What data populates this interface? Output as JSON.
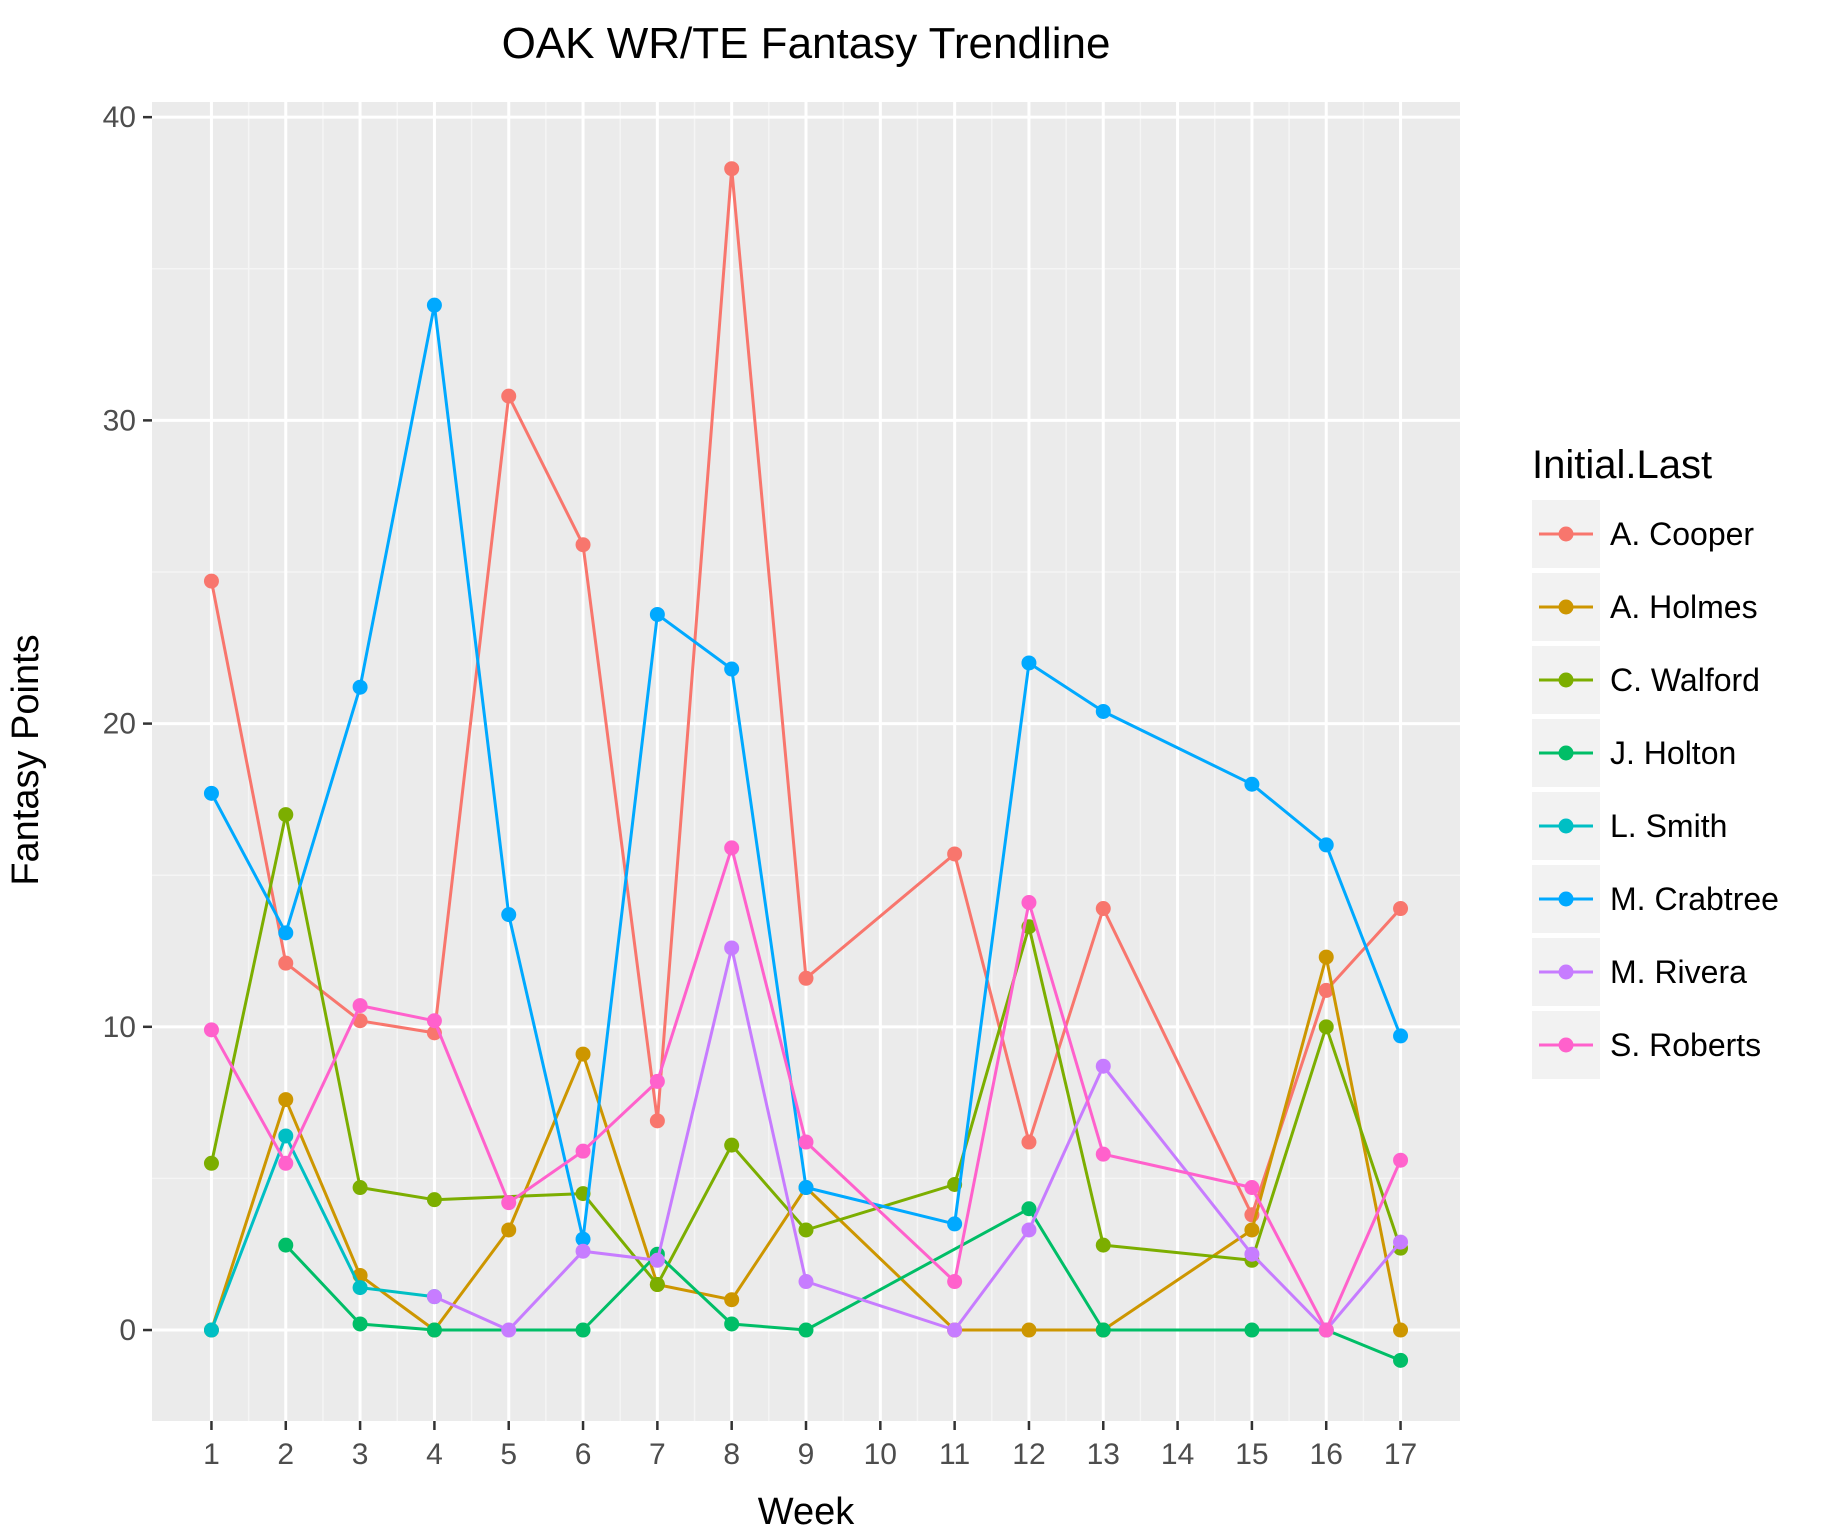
{
  "chart_data": {
    "type": "line",
    "title": "OAK WR/TE Fantasy Trendline",
    "xlabel": "Week",
    "ylabel": "Fantasy Points",
    "x_ticks": [
      "1",
      "2",
      "3",
      "4",
      "5",
      "6",
      "7",
      "8",
      "9",
      "10",
      "11",
      "12",
      "13",
      "14",
      "15",
      "16",
      "17"
    ],
    "y_ticks": [
      0,
      10,
      20,
      30,
      40
    ],
    "ylim": [
      -3,
      40.5
    ],
    "xlim": [
      0.2,
      17.8
    ],
    "grid": true,
    "legend": {
      "title": "Initial.Last",
      "position": "right"
    },
    "series": [
      {
        "name": "A. Cooper",
        "color": "#F8766D",
        "points": [
          [
            1,
            24.7
          ],
          [
            2,
            12.1
          ],
          [
            3,
            10.2
          ],
          [
            4,
            9.8
          ],
          [
            5,
            30.8
          ],
          [
            6,
            25.9
          ],
          [
            7,
            6.9
          ],
          [
            8,
            38.3
          ],
          [
            9,
            11.6
          ],
          [
            11,
            15.7
          ],
          [
            12,
            6.2
          ],
          [
            13,
            13.9
          ],
          [
            15,
            3.8
          ],
          [
            16,
            11.2
          ],
          [
            17,
            13.9
          ]
        ]
      },
      {
        "name": "A. Holmes",
        "color": "#CD9600",
        "points": [
          [
            1,
            0
          ],
          [
            2,
            7.6
          ],
          [
            3,
            1.8
          ],
          [
            4,
            0
          ],
          [
            5,
            3.3
          ],
          [
            6,
            9.1
          ],
          [
            7,
            1.5
          ],
          [
            8,
            1.0
          ],
          [
            9,
            4.7
          ],
          [
            11,
            0
          ],
          [
            12,
            0
          ],
          [
            13,
            0
          ],
          [
            15,
            3.3
          ],
          [
            16,
            12.3
          ],
          [
            17,
            0
          ]
        ]
      },
      {
        "name": "C. Walford",
        "color": "#7CAE00",
        "points": [
          [
            1,
            5.5
          ],
          [
            2,
            17.0
          ],
          [
            3,
            4.7
          ],
          [
            4,
            4.3
          ],
          [
            6,
            4.5
          ],
          [
            7,
            1.5
          ],
          [
            8,
            6.1
          ],
          [
            9,
            3.3
          ],
          [
            11,
            4.8
          ],
          [
            12,
            13.3
          ],
          [
            13,
            2.8
          ],
          [
            15,
            2.3
          ],
          [
            16,
            10.0
          ],
          [
            17,
            2.7
          ]
        ]
      },
      {
        "name": "J. Holton",
        "color": "#00BE67",
        "points": [
          [
            2,
            2.8
          ],
          [
            3,
            0.2
          ],
          [
            4,
            0
          ],
          [
            6,
            0
          ],
          [
            7,
            2.5
          ],
          [
            8,
            0.2
          ],
          [
            9,
            0
          ],
          [
            12,
            4.0
          ],
          [
            13,
            0
          ],
          [
            15,
            0
          ],
          [
            16,
            0
          ],
          [
            17,
            -1.0
          ]
        ]
      },
      {
        "name": "L. Smith",
        "color": "#00BFC4",
        "points": [
          [
            1,
            0
          ],
          [
            2,
            6.4
          ],
          [
            3,
            1.4
          ],
          [
            4,
            1.1
          ]
        ]
      },
      {
        "name": "M. Crabtree",
        "color": "#00A9FF",
        "points": [
          [
            1,
            17.7
          ],
          [
            2,
            13.1
          ],
          [
            3,
            21.2
          ],
          [
            4,
            33.8
          ],
          [
            5,
            13.7
          ],
          [
            6,
            3.0
          ],
          [
            7,
            23.6
          ],
          [
            8,
            21.8
          ],
          [
            9,
            4.7
          ],
          [
            11,
            3.5
          ],
          [
            12,
            22.0
          ],
          [
            13,
            20.4
          ],
          [
            15,
            18.0
          ],
          [
            16,
            16.0
          ],
          [
            17,
            9.7
          ]
        ]
      },
      {
        "name": "M. Rivera",
        "color": "#C77CFF",
        "points": [
          [
            4,
            1.1
          ],
          [
            5,
            0
          ],
          [
            6,
            2.6
          ],
          [
            7,
            2.3
          ],
          [
            8,
            12.6
          ],
          [
            9,
            1.6
          ],
          [
            11,
            0
          ],
          [
            12,
            3.3
          ],
          [
            13,
            8.7
          ],
          [
            15,
            2.5
          ],
          [
            16,
            0
          ],
          [
            17,
            2.9
          ]
        ]
      },
      {
        "name": "S. Roberts",
        "color": "#FF61CC",
        "points": [
          [
            1,
            9.9
          ],
          [
            2,
            5.5
          ],
          [
            3,
            10.7
          ],
          [
            4,
            10.2
          ],
          [
            5,
            4.2
          ],
          [
            6,
            5.9
          ],
          [
            7,
            8.2
          ],
          [
            8,
            15.9
          ],
          [
            9,
            6.2
          ],
          [
            11,
            1.6
          ],
          [
            12,
            14.1
          ],
          [
            13,
            5.8
          ],
          [
            15,
            4.7
          ],
          [
            16,
            0
          ],
          [
            17,
            5.6
          ]
        ]
      }
    ]
  },
  "colors": {
    "panel_background": "#EBEBEB",
    "grid_major": "#FFFFFF",
    "grid_minor": "#F5F5F5",
    "legend_key_background": "#F2F2F2"
  }
}
